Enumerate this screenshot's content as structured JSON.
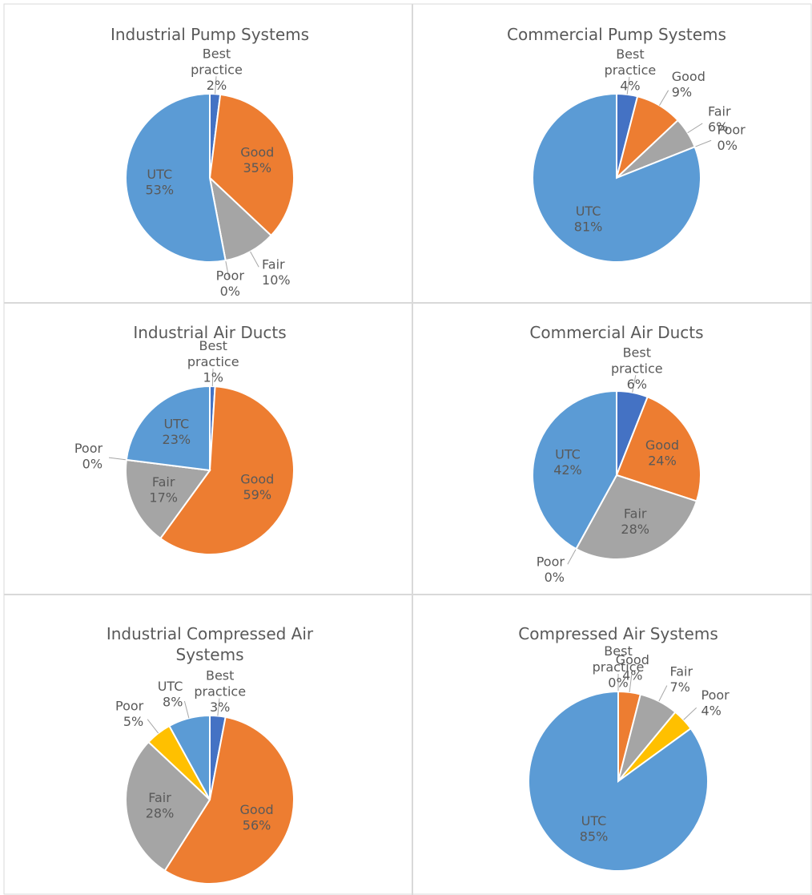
{
  "chart_data": [
    {
      "type": "pie",
      "title": "Industrial Pump Systems",
      "categories": [
        "Best practice",
        "Good",
        "Fair",
        "Poor",
        "UTC"
      ],
      "values": [
        2,
        35,
        10,
        0,
        53
      ],
      "value_labels": [
        "2%",
        "35%",
        "10%",
        "0%",
        "53%"
      ],
      "colors": [
        "#4472c4",
        "#ed7d31",
        "#a5a5a5",
        "#ffc000",
        "#5b9bd5"
      ]
    },
    {
      "type": "pie",
      "title": "Commercial Pump Systems",
      "categories": [
        "Best practice",
        "Good",
        "Fair",
        "Poor",
        "UTC"
      ],
      "values": [
        4,
        9,
        6,
        0,
        81
      ],
      "value_labels": [
        "4%",
        "9%",
        "6%",
        "0%",
        "81%"
      ],
      "colors": [
        "#4472c4",
        "#ed7d31",
        "#a5a5a5",
        "#ffc000",
        "#5b9bd5"
      ]
    },
    {
      "type": "pie",
      "title": "Industrial Air Ducts",
      "categories": [
        "Best practice",
        "Good",
        "Fair",
        "Poor",
        "UTC"
      ],
      "values": [
        1,
        59,
        17,
        0,
        23
      ],
      "value_labels": [
        "1%",
        "59%",
        "17%",
        "0%",
        "23%"
      ],
      "colors": [
        "#4472c4",
        "#ed7d31",
        "#a5a5a5",
        "#ffc000",
        "#5b9bd5"
      ]
    },
    {
      "type": "pie",
      "title": "Commercial Air Ducts",
      "categories": [
        "Best practice",
        "Good",
        "Fair",
        "Poor",
        "UTC"
      ],
      "values": [
        6,
        24,
        28,
        0,
        42
      ],
      "value_labels": [
        "6%",
        "24%",
        "28%",
        "0%",
        "42%"
      ],
      "colors": [
        "#4472c4",
        "#ed7d31",
        "#a5a5a5",
        "#ffc000",
        "#5b9bd5"
      ]
    },
    {
      "type": "pie",
      "title": "Industrial Compressed Air Systems",
      "categories": [
        "Best practice",
        "Good",
        "Fair",
        "Poor",
        "UTC"
      ],
      "values": [
        3,
        56,
        28,
        5,
        8
      ],
      "value_labels": [
        "3%",
        "56%",
        "28%",
        "5%",
        "8%"
      ],
      "colors": [
        "#4472c4",
        "#ed7d31",
        "#a5a5a5",
        "#ffc000",
        "#5b9bd5"
      ]
    },
    {
      "type": "pie",
      "title": "Compressed Air Systems",
      "categories": [
        "Best practice",
        "Good",
        "Fair",
        "Poor",
        "UTC"
      ],
      "values": [
        0,
        4,
        7,
        4,
        85
      ],
      "value_labels": [
        "0%",
        "4%",
        "7%",
        "4%",
        "85%"
      ],
      "colors": [
        "#4472c4",
        "#ed7d31",
        "#a5a5a5",
        "#ffc000",
        "#5b9bd5"
      ]
    }
  ]
}
